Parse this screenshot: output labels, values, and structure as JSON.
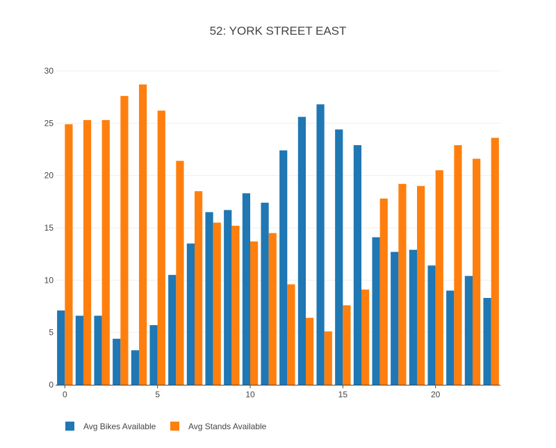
{
  "chart_data": {
    "type": "bar",
    "title": "52: YORK STREET EAST",
    "xlabel": "",
    "ylabel": "",
    "x": [
      0,
      1,
      2,
      3,
      4,
      5,
      6,
      7,
      8,
      9,
      10,
      11,
      12,
      13,
      14,
      15,
      16,
      17,
      18,
      19,
      20,
      21,
      22,
      23
    ],
    "x_ticks": [
      0,
      5,
      10,
      15,
      20
    ],
    "y_ticks": [
      0,
      5,
      10,
      15,
      20,
      25,
      30
    ],
    "xlim": [
      -0.5,
      23.5
    ],
    "ylim": [
      0,
      30
    ],
    "grid": true,
    "legend_position": "bottom-left",
    "series": [
      {
        "name": "Avg Bikes Available",
        "color": "#1f77b4",
        "values": [
          7.1,
          6.6,
          6.6,
          4.4,
          3.3,
          5.7,
          10.5,
          13.5,
          16.5,
          16.7,
          18.3,
          17.4,
          22.4,
          25.6,
          26.8,
          24.4,
          22.9,
          14.1,
          12.7,
          12.9,
          11.4,
          9.0,
          10.4,
          8.3
        ]
      },
      {
        "name": "Avg Stands Available",
        "color": "#ff7f0e",
        "values": [
          24.9,
          25.3,
          25.3,
          27.6,
          28.7,
          26.2,
          21.4,
          18.5,
          15.5,
          15.2,
          13.7,
          14.5,
          9.6,
          6.4,
          5.1,
          7.6,
          9.1,
          17.8,
          19.2,
          19.0,
          20.5,
          22.9,
          21.6,
          23.6
        ]
      }
    ]
  }
}
